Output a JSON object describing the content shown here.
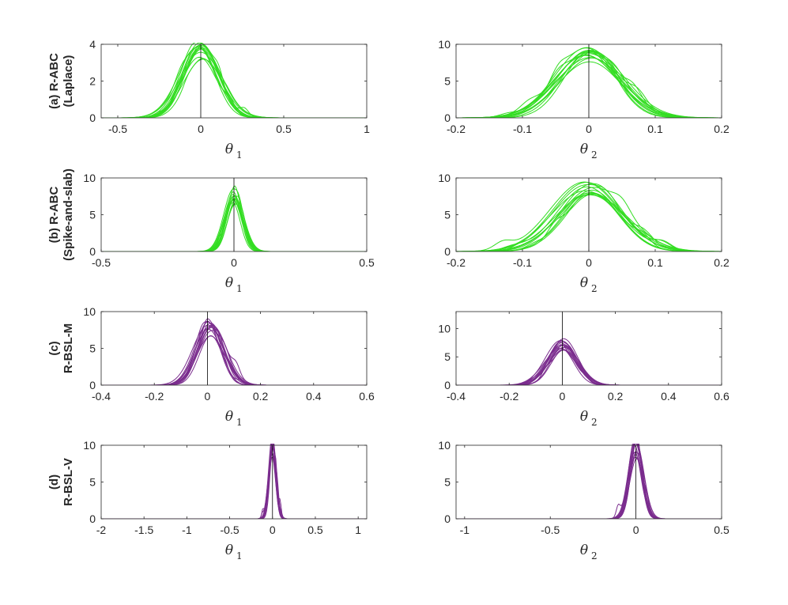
{
  "colors": {
    "abc": "#33dd22",
    "bsl": "#7b2d8e",
    "axis": "#262626",
    "zero_line": "#000000"
  },
  "chart_data": [
    {
      "type": "line",
      "row_label": [
        "(a) R-ABC",
        "(Laplace)"
      ],
      "xlabel": "θ",
      "xlabel_sub": "1",
      "xlim": [
        -0.6,
        1.0
      ],
      "ylim": [
        0,
        4
      ],
      "xticks": [
        -0.5,
        0,
        0.5,
        1
      ],
      "xtick_labels": [
        "-0.5",
        "0",
        "0.5",
        "1"
      ],
      "yticks": [
        0,
        2,
        4
      ],
      "ytick_labels": [
        "0",
        "2",
        "4"
      ],
      "color_key": "abc",
      "curves": [
        {
          "center": 0.0,
          "peak": 3.6,
          "width": 0.11,
          "count": 14
        }
      ]
    },
    {
      "type": "line",
      "row_label": [],
      "xlabel": "θ",
      "xlabel_sub": "2",
      "xlim": [
        -0.2,
        0.2
      ],
      "ylim": [
        0,
        10
      ],
      "xticks": [
        -0.2,
        -0.1,
        0,
        0.1,
        0.2
      ],
      "xtick_labels": [
        "-0.2",
        "-0.1",
        "0",
        "0.1",
        "0.2"
      ],
      "yticks": [
        0,
        5,
        10
      ],
      "ytick_labels": [
        "0",
        "5",
        "10"
      ],
      "color_key": "abc",
      "curves": [
        {
          "center": 0.0,
          "peak": 8.7,
          "width": 0.045,
          "count": 14
        }
      ]
    },
    {
      "type": "line",
      "row_label": [
        "(b) R-ABC",
        "(Spike-and-slab)"
      ],
      "xlabel": "θ",
      "xlabel_sub": "1",
      "xlim": [
        -0.5,
        0.5
      ],
      "ylim": [
        0,
        10
      ],
      "xticks": [
        -0.5,
        0,
        0.5
      ],
      "xtick_labels": [
        "-0.5",
        "0",
        "0.5"
      ],
      "yticks": [
        0,
        5,
        10
      ],
      "ytick_labels": [
        "0",
        "5",
        "10"
      ],
      "color_key": "abc",
      "curves": [
        {
          "center": 0.0,
          "peak": 7.5,
          "width": 0.032,
          "count": 14
        }
      ]
    },
    {
      "type": "line",
      "row_label": [],
      "xlabel": "θ",
      "xlabel_sub": "2",
      "xlim": [
        -0.2,
        0.2
      ],
      "ylim": [
        0,
        10
      ],
      "xticks": [
        -0.2,
        -0.1,
        0,
        0.1,
        0.2
      ],
      "xtick_labels": [
        "-0.2",
        "-0.1",
        "0",
        "0.1",
        "0.2"
      ],
      "yticks": [
        0,
        5,
        10
      ],
      "ytick_labels": [
        "0",
        "5",
        "10"
      ],
      "color_key": "abc",
      "curves": [
        {
          "center": 0.0,
          "peak": 8.8,
          "width": 0.046,
          "count": 14
        }
      ]
    },
    {
      "type": "line",
      "row_label": [
        "(c)",
        "R-BSL-M"
      ],
      "xlabel": "θ",
      "xlabel_sub": "1",
      "xlim": [
        -0.4,
        0.6
      ],
      "ylim": [
        0,
        10
      ],
      "xticks": [
        -0.4,
        -0.2,
        0,
        0.2,
        0.4,
        0.6
      ],
      "xtick_labels": [
        "-0.4",
        "-0.2",
        "0",
        "0.2",
        "0.4",
        "0.6"
      ],
      "yticks": [
        0,
        5,
        10
      ],
      "ytick_labels": [
        "0",
        "5",
        "10"
      ],
      "color_key": "bsl",
      "curves": [
        {
          "center": 0.01,
          "peak": 7.5,
          "width": 0.05,
          "count": 14
        }
      ]
    },
    {
      "type": "line",
      "row_label": [],
      "xlabel": "θ",
      "xlabel_sub": "2",
      "xlim": [
        -0.4,
        0.6
      ],
      "ylim": [
        0,
        13
      ],
      "xticks": [
        -0.4,
        -0.2,
        0,
        0.2,
        0.4,
        0.6
      ],
      "xtick_labels": [
        "-0.4",
        "-0.2",
        "0",
        "0.2",
        "0.4",
        "0.6"
      ],
      "yticks": [
        0,
        5,
        10
      ],
      "ytick_labels": [
        "0",
        "5",
        "10"
      ],
      "color_key": "bsl",
      "curves": [
        {
          "center": 0.0,
          "peak": 7.2,
          "width": 0.055,
          "count": 14
        }
      ]
    },
    {
      "type": "line",
      "row_label": [
        "(d)",
        "R-BSL-V"
      ],
      "xlabel": "θ",
      "xlabel_sub": "1",
      "xlim": [
        -2.0,
        1.1
      ],
      "ylim": [
        0,
        10
      ],
      "xticks": [
        -2,
        -1.5,
        -1,
        -0.5,
        0,
        0.5,
        1
      ],
      "xtick_labels": [
        "-2",
        "-1.5",
        "-1",
        "-0.5",
        "0",
        "0.5",
        "1"
      ],
      "yticks": [
        0,
        5,
        10
      ],
      "ytick_labels": [
        "0",
        "5",
        "10"
      ],
      "color_key": "bsl",
      "curves": [
        {
          "center": 0.0,
          "peak": 9.8,
          "width": 0.04,
          "count": 14
        }
      ]
    },
    {
      "type": "line",
      "row_label": [],
      "xlabel": "θ",
      "xlabel_sub": "2",
      "xlim": [
        -1.05,
        0.5
      ],
      "ylim": [
        0,
        10
      ],
      "xticks": [
        -1,
        -0.5,
        0,
        0.5
      ],
      "xtick_labels": [
        "-1",
        "-0.5",
        "0",
        "0.5"
      ],
      "yticks": [
        0,
        5,
        10
      ],
      "ytick_labels": [
        "0",
        "5",
        "10"
      ],
      "color_key": "bsl",
      "curves": [
        {
          "center": 0.0,
          "peak": 9.6,
          "width": 0.04,
          "count": 14
        }
      ]
    }
  ]
}
